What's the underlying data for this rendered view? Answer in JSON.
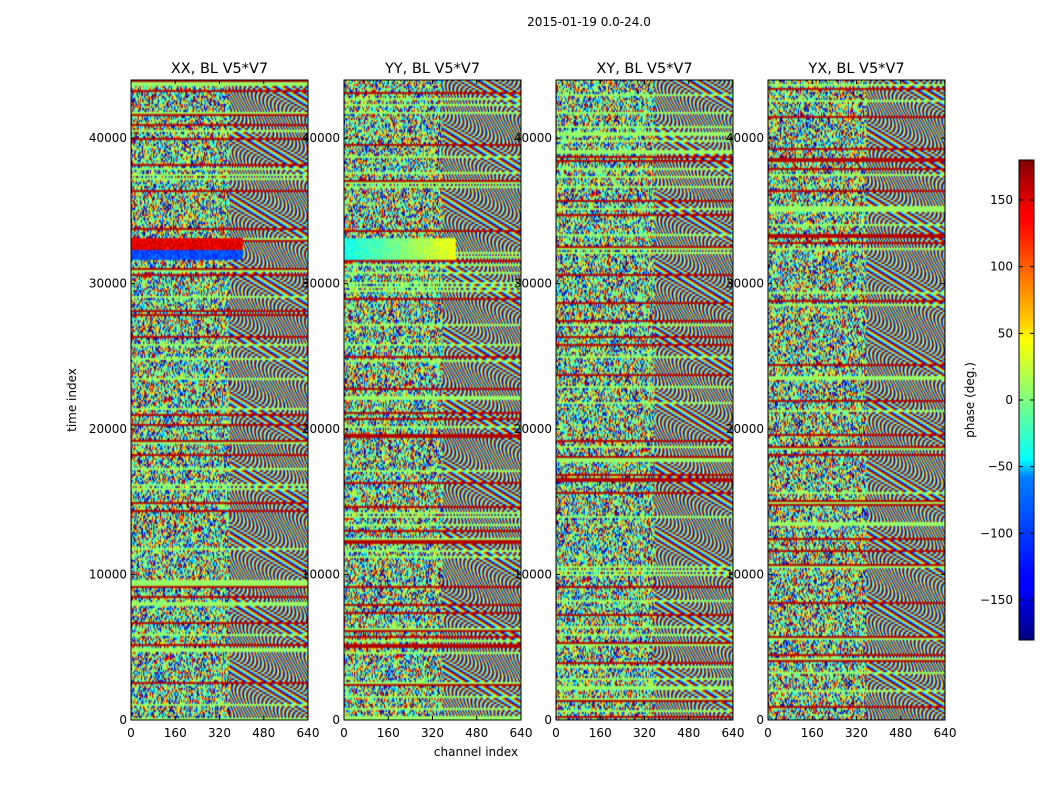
{
  "chart_data": [
    {
      "type": "heatmap",
      "title": "XX, BL V5*V7",
      "xlabel": "",
      "ylabel": "time index",
      "x_ticks": [
        "0",
        "160",
        "320",
        "480",
        "640"
      ],
      "y_ticks": [
        "0",
        "10000",
        "20000",
        "30000",
        "40000"
      ],
      "xlim": [
        0,
        640
      ],
      "ylim": [
        0,
        44000
      ],
      "style": {
        "warm_band": true,
        "blue_band": true
      }
    },
    {
      "type": "heatmap",
      "title": "YY, BL V5*V7",
      "xlabel": "channel index",
      "ylabel": "",
      "x_ticks": [
        "0",
        "160",
        "320",
        "480",
        "640"
      ],
      "y_ticks": [
        "0",
        "10000",
        "20000",
        "30000",
        "40000"
      ],
      "xlim": [
        0,
        640
      ],
      "ylim": [
        0,
        44000
      ],
      "style": {
        "warm_band": false,
        "blue_band": true
      }
    },
    {
      "type": "heatmap",
      "title": "XY, BL V5*V7",
      "xlabel": "",
      "ylabel": "",
      "x_ticks": [
        "0",
        "160",
        "320",
        "480",
        "640"
      ],
      "y_ticks": [
        "0",
        "10000",
        "20000",
        "30000",
        "40000"
      ],
      "xlim": [
        0,
        640
      ],
      "ylim": [
        0,
        44000
      ],
      "style": {
        "warm_band": false,
        "blue_band": false
      }
    },
    {
      "type": "heatmap",
      "title": "YX, BL V5*V7",
      "xlabel": "",
      "ylabel": "",
      "x_ticks": [
        "0",
        "160",
        "320",
        "480",
        "640"
      ],
      "y_ticks": [
        "0",
        "10000",
        "20000",
        "30000",
        "40000"
      ],
      "xlim": [
        0,
        640
      ],
      "ylim": [
        0,
        44000
      ],
      "style": {
        "warm_band": false,
        "blue_band": false
      }
    }
  ],
  "suptitle": "2015-01-19 0.0-24.0",
  "colorbar": {
    "label": "phase (deg.)",
    "range": [
      -180,
      180
    ],
    "ticks": [
      "150",
      "100",
      "50",
      "0",
      "−50",
      "−100",
      "−150"
    ],
    "tick_values": [
      150,
      100,
      50,
      0,
      -50,
      -100,
      -150
    ],
    "colormap": "jet"
  }
}
